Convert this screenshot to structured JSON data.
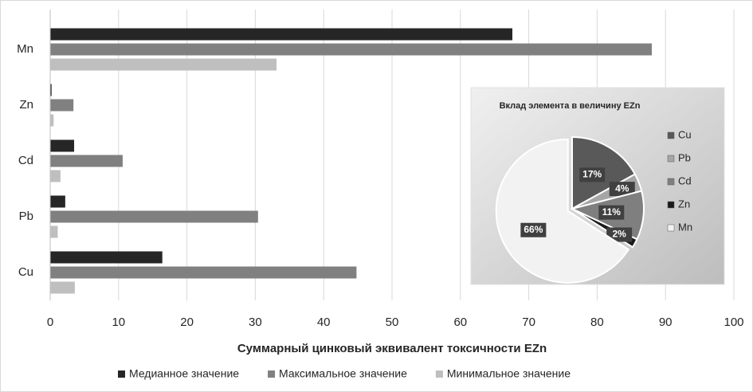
{
  "chart_data": [
    {
      "type": "hbar",
      "x_label": "Суммарный цинковый эквивалент токсичности EZn",
      "categories": [
        "Cu",
        "Pb",
        "Cd",
        "Zn",
        "Mn"
      ],
      "series": [
        {
          "name": "Медианное значение",
          "color": "#262626",
          "values": [
            16.4,
            2.2,
            3.5,
            0.2,
            67.6
          ]
        },
        {
          "name": "Максимальное значение",
          "color": "#808080",
          "values": [
            44.8,
            30.4,
            10.6,
            3.4,
            88
          ]
        },
        {
          "name": "Минимальное значение",
          "color": "#bfbfbf",
          "values": [
            3.6,
            1.1,
            1.5,
            0.5,
            33.1
          ]
        }
      ],
      "xlim": [
        0,
        100
      ],
      "xticks": [
        0,
        10,
        20,
        30,
        40,
        50,
        60,
        70,
        80,
        90,
        100
      ],
      "grid": true,
      "legend": "bottom"
    },
    {
      "type": "pie",
      "title": "Вклад элемента в величину EZn",
      "categories": [
        "Cu",
        "Pb",
        "Cd",
        "Zn",
        "Mn"
      ],
      "values": [
        17,
        4,
        11,
        2,
        66
      ],
      "value_labels": [
        "17%",
        "4%",
        "11%",
        "2%",
        "66%"
      ],
      "colors": [
        "#595959",
        "#a6a6a6",
        "#7f7f7f",
        "#1a1a1a",
        "#f2f2f2"
      ],
      "legend": "right"
    }
  ]
}
